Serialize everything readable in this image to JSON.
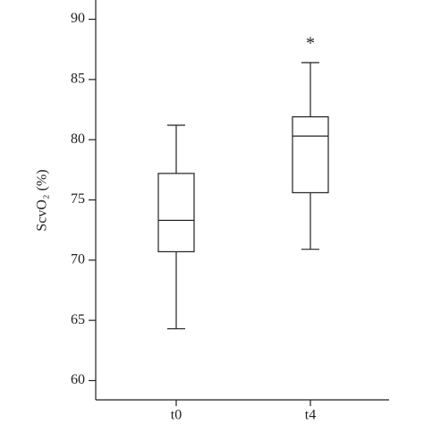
{
  "chart_data": {
    "type": "box",
    "y_label": "ScvO₂ (%)",
    "categories": [
      "t0",
      "t4"
    ],
    "boxes": [
      {
        "min": 64.3,
        "q1": 70.7,
        "median": 73.3,
        "q3": 77.2,
        "max": 81.2
      },
      {
        "min": 70.9,
        "q1": 75.6,
        "median": 80.3,
        "q3": 81.9,
        "max": 86.4
      }
    ],
    "annotations": [
      {
        "text": "*",
        "category": "t4"
      }
    ],
    "color": "#222222",
    "ylim": [
      58.4,
      91.6
    ],
    "yticks": [
      60,
      65,
      70,
      75,
      80,
      85,
      90
    ],
    "grid": false
  }
}
